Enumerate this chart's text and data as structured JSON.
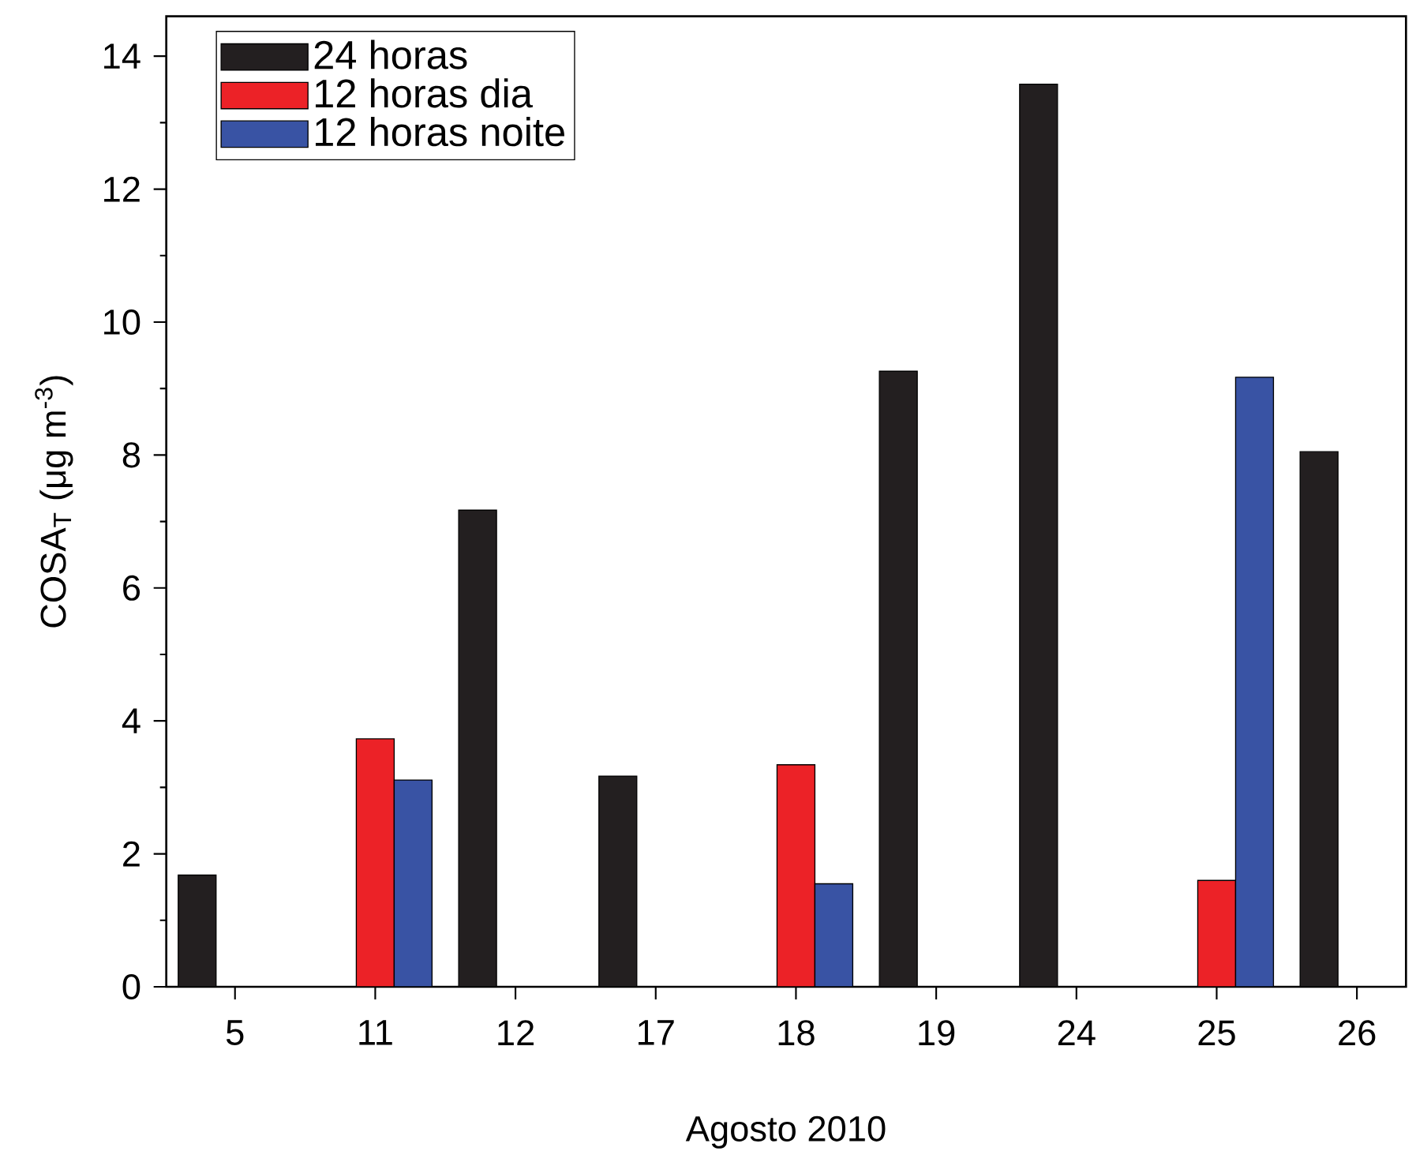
{
  "chart_data": {
    "type": "bar",
    "xlabel": "Agosto 2010",
    "ylabel": "COSA$_{T}$ (μg m$^{-3}$)",
    "categories": [
      "5",
      "11",
      "12",
      "17",
      "18",
      "19",
      "24",
      "25",
      "26"
    ],
    "series": [
      {
        "name": "24 horas",
        "color": "#231f20",
        "values": [
          1.68,
          null,
          7.17,
          3.17,
          null,
          9.26,
          13.58,
          null,
          8.05
        ]
      },
      {
        "name": "12 horas dia",
        "color": "#ec2227",
        "values": [
          null,
          3.73,
          null,
          null,
          3.34,
          null,
          null,
          1.6,
          null
        ]
      },
      {
        "name": "12 horas noite",
        "color": "#3953a4",
        "values": [
          null,
          3.11,
          null,
          null,
          1.55,
          null,
          null,
          9.17,
          null
        ]
      }
    ],
    "ylim": [
      0,
      14.6
    ],
    "yticks": [
      0,
      2,
      4,
      6,
      8,
      10,
      12,
      14
    ],
    "legend": "top left",
    "grid": false
  }
}
